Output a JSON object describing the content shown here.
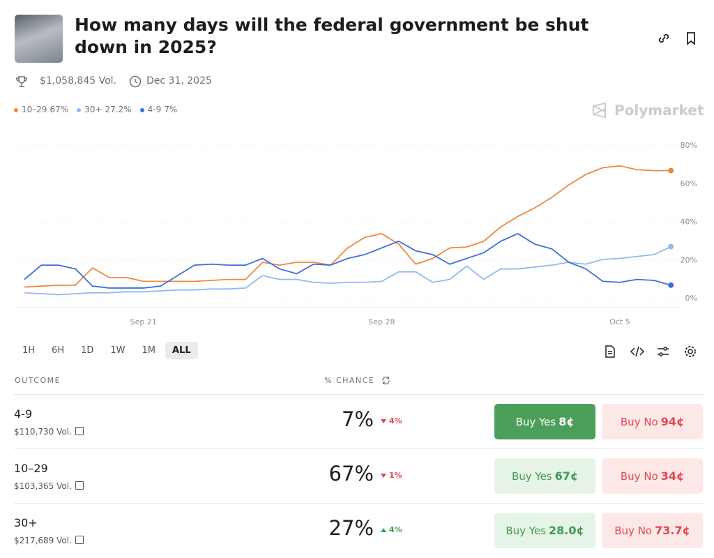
{
  "header": {
    "title": "How many days will the federal government be shut down in 2025?",
    "volume": "$1,058,845 Vol.",
    "end_date": "Dec 31, 2025",
    "brand": "Polymarket"
  },
  "chart_data": {
    "type": "line",
    "categories": [
      null,
      null,
      null,
      null,
      null,
      null,
      null,
      "Sep 21",
      null,
      null,
      null,
      null,
      null,
      null,
      null,
      null,
      null,
      null,
      null,
      null,
      null,
      "Sep 28",
      null,
      null,
      null,
      null,
      null,
      null,
      null,
      null,
      null,
      null,
      null,
      null,
      null,
      "Oct 5",
      null,
      null,
      null
    ],
    "ylim": [
      0,
      80
    ],
    "yticks": [
      {
        "value": 0,
        "label": "0%"
      },
      {
        "value": 20,
        "label": "20%"
      },
      {
        "value": 40,
        "label": "40%"
      },
      {
        "value": 60,
        "label": "60%"
      },
      {
        "value": 80,
        "label": "80%"
      }
    ],
    "grid": true,
    "series": [
      {
        "name": "10–29",
        "current": "67%",
        "color": "#f0883e",
        "values": [
          6,
          6.5,
          7,
          7,
          16,
          11,
          11,
          9,
          9,
          9,
          9,
          9.5,
          10,
          10,
          19,
          17.5,
          19,
          19,
          17.5,
          26.5,
          32,
          34,
          28.5,
          18,
          21,
          26.5,
          27,
          30,
          37.5,
          43,
          47.5,
          53,
          59.5,
          65,
          68.5,
          69.5,
          67.5,
          67,
          67
        ]
      },
      {
        "name": "30+",
        "current": "27.2%",
        "color": "#93b8f0",
        "values": [
          3,
          2.5,
          2,
          2.5,
          3,
          3,
          3.5,
          3.5,
          4,
          4.5,
          4.5,
          5,
          5,
          5.5,
          12,
          10,
          10,
          8.5,
          8,
          8.5,
          8.5,
          9,
          14,
          14,
          8.5,
          10,
          17,
          10,
          15.5,
          15.5,
          16.5,
          17.5,
          19,
          18,
          20.5,
          21,
          22,
          23,
          27.2
        ]
      },
      {
        "name": "4-9",
        "current": "7%",
        "color": "#3c6ee0",
        "values": [
          10,
          17.5,
          17.5,
          15.5,
          6.5,
          5.5,
          5.5,
          5.5,
          6.5,
          12,
          17.5,
          18,
          17.5,
          17.5,
          21,
          15.5,
          13,
          18,
          17.5,
          21,
          23,
          26.5,
          30,
          25,
          23,
          18,
          21,
          24,
          30,
          34,
          28.5,
          26,
          19,
          15.5,
          9,
          8.5,
          10,
          9.5,
          7
        ]
      }
    ]
  },
  "ranges": {
    "options": [
      "1H",
      "6H",
      "1D",
      "1W",
      "1M",
      "ALL"
    ],
    "selected": 5
  },
  "table": {
    "col_outcome": "OUTCOME",
    "col_chance": "% CHANCE",
    "buy_yes": "Buy Yes",
    "buy_no": "Buy No",
    "rows": [
      {
        "name": "4-9",
        "volume": "$110,730 Vol.",
        "chance": "7%",
        "change": "4%",
        "direction": "down",
        "yes": "8¢",
        "no": "94¢",
        "highlight": true
      },
      {
        "name": "10–29",
        "volume": "$103,365 Vol.",
        "chance": "67%",
        "change": "1%",
        "direction": "down",
        "yes": "67¢",
        "no": "34¢",
        "highlight": false
      },
      {
        "name": "30+",
        "volume": "$217,689 Vol.",
        "chance": "27%",
        "change": "4%",
        "direction": "up",
        "yes": "28.0¢",
        "no": "73.7¢",
        "highlight": false
      }
    ]
  }
}
